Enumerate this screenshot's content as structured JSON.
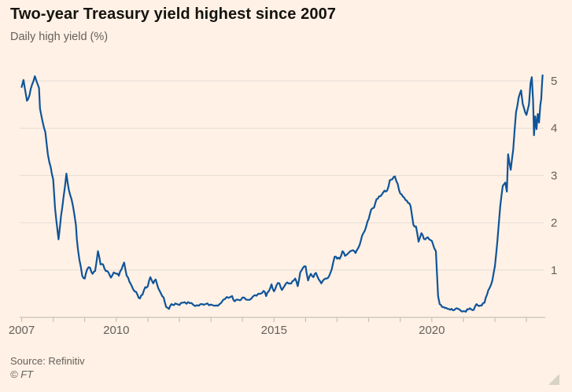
{
  "chart": {
    "title": "Two-year Treasury yield highest since 2007",
    "subtitle": "Daily high yield (%)",
    "source": "Source: Refinitiv",
    "copyright": "© FT"
  },
  "colors": {
    "background": "#fff1e5",
    "title_text": "#16130f",
    "muted_text": "#66605c",
    "gridline": "#e4ddd6",
    "axis_line": "#c9c1b8",
    "line": "#0f5499",
    "resize_handle": "#d8d2c7"
  },
  "chart_data": {
    "type": "line",
    "title": "Two-year Treasury yield highest since 2007",
    "subtitle": "Daily high yield (%)",
    "source": "Source: Refinitiv",
    "grid": "horizontal",
    "legend": "none",
    "y_axis_side": "right",
    "xlim": [
      2006.94,
      2023.6
    ],
    "ylim": [
      0,
      5.35
    ],
    "y_ticks": [
      1,
      2,
      3,
      4,
      5
    ],
    "x_ticks": [
      2007,
      2008,
      2009,
      2010,
      2011,
      2012,
      2013,
      2014,
      2015,
      2016,
      2017,
      2018,
      2019,
      2020,
      2021,
      2022,
      2023
    ],
    "x_labeled_ticks": [
      2007,
      2010,
      2015,
      2020
    ],
    "series": [
      {
        "name": "US two-year Treasury daily high yield (%)",
        "color": "#0f5499",
        "points": [
          [
            2007.0,
            4.87
          ],
          [
            2007.06,
            5.02
          ],
          [
            2007.1,
            4.85
          ],
          [
            2007.17,
            4.58
          ],
          [
            2007.25,
            4.7
          ],
          [
            2007.33,
            4.92
          ],
          [
            2007.42,
            5.1
          ],
          [
            2007.48,
            4.98
          ],
          [
            2007.55,
            4.85
          ],
          [
            2007.58,
            4.42
          ],
          [
            2007.67,
            4.12
          ],
          [
            2007.75,
            3.92
          ],
          [
            2007.83,
            3.45
          ],
          [
            2007.92,
            3.18
          ],
          [
            2008.0,
            2.92
          ],
          [
            2008.06,
            2.3
          ],
          [
            2008.1,
            2.05
          ],
          [
            2008.17,
            1.65
          ],
          [
            2008.22,
            1.95
          ],
          [
            2008.25,
            2.15
          ],
          [
            2008.33,
            2.55
          ],
          [
            2008.42,
            3.04
          ],
          [
            2008.5,
            2.68
          ],
          [
            2008.58,
            2.5
          ],
          [
            2008.67,
            2.18
          ],
          [
            2008.72,
            1.95
          ],
          [
            2008.75,
            1.65
          ],
          [
            2008.83,
            1.22
          ],
          [
            2008.92,
            0.88
          ],
          [
            2009.0,
            0.82
          ],
          [
            2009.08,
            1.02
          ],
          [
            2009.17,
            1.05
          ],
          [
            2009.25,
            0.92
          ],
          [
            2009.33,
            0.98
          ],
          [
            2009.42,
            1.4
          ],
          [
            2009.5,
            1.12
          ],
          [
            2009.58,
            1.12
          ],
          [
            2009.67,
            0.98
          ],
          [
            2009.75,
            0.95
          ],
          [
            2009.83,
            0.84
          ],
          [
            2009.92,
            0.95
          ],
          [
            2010.0,
            0.92
          ],
          [
            2010.08,
            0.88
          ],
          [
            2010.17,
            1.02
          ],
          [
            2010.25,
            1.16
          ],
          [
            2010.33,
            0.88
          ],
          [
            2010.42,
            0.75
          ],
          [
            2010.5,
            0.65
          ],
          [
            2010.58,
            0.55
          ],
          [
            2010.67,
            0.48
          ],
          [
            2010.75,
            0.4
          ],
          [
            2010.83,
            0.48
          ],
          [
            2010.92,
            0.64
          ],
          [
            2011.0,
            0.66
          ],
          [
            2011.08,
            0.85
          ],
          [
            2011.17,
            0.72
          ],
          [
            2011.25,
            0.8
          ],
          [
            2011.33,
            0.62
          ],
          [
            2011.42,
            0.5
          ],
          [
            2011.5,
            0.42
          ],
          [
            2011.58,
            0.22
          ],
          [
            2011.67,
            0.18
          ],
          [
            2011.75,
            0.28
          ],
          [
            2011.83,
            0.26
          ],
          [
            2011.92,
            0.28
          ],
          [
            2012.0,
            0.26
          ],
          [
            2012.17,
            0.32
          ],
          [
            2012.33,
            0.3
          ],
          [
            2012.5,
            0.24
          ],
          [
            2012.67,
            0.28
          ],
          [
            2012.83,
            0.28
          ],
          [
            2013.0,
            0.27
          ],
          [
            2013.17,
            0.25
          ],
          [
            2013.33,
            0.31
          ],
          [
            2013.5,
            0.43
          ],
          [
            2013.67,
            0.45
          ],
          [
            2013.75,
            0.34
          ],
          [
            2013.92,
            0.36
          ],
          [
            2014.0,
            0.42
          ],
          [
            2014.17,
            0.37
          ],
          [
            2014.33,
            0.44
          ],
          [
            2014.5,
            0.5
          ],
          [
            2014.67,
            0.56
          ],
          [
            2014.75,
            0.45
          ],
          [
            2014.83,
            0.55
          ],
          [
            2014.92,
            0.7
          ],
          [
            2015.0,
            0.55
          ],
          [
            2015.08,
            0.68
          ],
          [
            2015.17,
            0.72
          ],
          [
            2015.25,
            0.58
          ],
          [
            2015.33,
            0.66
          ],
          [
            2015.42,
            0.74
          ],
          [
            2015.5,
            0.72
          ],
          [
            2015.58,
            0.76
          ],
          [
            2015.67,
            0.82
          ],
          [
            2015.75,
            0.66
          ],
          [
            2015.83,
            0.95
          ],
          [
            2015.92,
            1.05
          ],
          [
            2016.0,
            1.08
          ],
          [
            2016.08,
            0.78
          ],
          [
            2016.17,
            0.92
          ],
          [
            2016.25,
            0.85
          ],
          [
            2016.33,
            0.94
          ],
          [
            2016.42,
            0.8
          ],
          [
            2016.5,
            0.72
          ],
          [
            2016.58,
            0.8
          ],
          [
            2016.67,
            0.82
          ],
          [
            2016.75,
            0.88
          ],
          [
            2016.83,
            1.02
          ],
          [
            2016.92,
            1.28
          ],
          [
            2017.0,
            1.24
          ],
          [
            2017.08,
            1.24
          ],
          [
            2017.17,
            1.4
          ],
          [
            2017.25,
            1.3
          ],
          [
            2017.33,
            1.34
          ],
          [
            2017.42,
            1.4
          ],
          [
            2017.5,
            1.42
          ],
          [
            2017.58,
            1.36
          ],
          [
            2017.67,
            1.47
          ],
          [
            2017.75,
            1.62
          ],
          [
            2017.83,
            1.78
          ],
          [
            2017.92,
            1.92
          ],
          [
            2018.0,
            2.08
          ],
          [
            2018.08,
            2.28
          ],
          [
            2018.17,
            2.32
          ],
          [
            2018.25,
            2.5
          ],
          [
            2018.33,
            2.56
          ],
          [
            2018.42,
            2.6
          ],
          [
            2018.5,
            2.68
          ],
          [
            2018.58,
            2.68
          ],
          [
            2018.67,
            2.9
          ],
          [
            2018.75,
            2.92
          ],
          [
            2018.83,
            2.98
          ],
          [
            2018.92,
            2.82
          ],
          [
            2019.0,
            2.62
          ],
          [
            2019.08,
            2.56
          ],
          [
            2019.17,
            2.48
          ],
          [
            2019.25,
            2.42
          ],
          [
            2019.33,
            2.35
          ],
          [
            2019.42,
            1.95
          ],
          [
            2019.5,
            1.92
          ],
          [
            2019.58,
            1.6
          ],
          [
            2019.67,
            1.78
          ],
          [
            2019.75,
            1.66
          ],
          [
            2019.83,
            1.68
          ],
          [
            2019.92,
            1.65
          ],
          [
            2020.0,
            1.62
          ],
          [
            2020.08,
            1.46
          ],
          [
            2020.13,
            1.4
          ],
          [
            2020.2,
            0.45
          ],
          [
            2020.25,
            0.28
          ],
          [
            2020.33,
            0.22
          ],
          [
            2020.42,
            0.2
          ],
          [
            2020.5,
            0.18
          ],
          [
            2020.58,
            0.16
          ],
          [
            2020.67,
            0.15
          ],
          [
            2020.75,
            0.18
          ],
          [
            2020.83,
            0.18
          ],
          [
            2020.92,
            0.14
          ],
          [
            2021.0,
            0.13
          ],
          [
            2021.08,
            0.12
          ],
          [
            2021.17,
            0.17
          ],
          [
            2021.25,
            0.17
          ],
          [
            2021.33,
            0.16
          ],
          [
            2021.42,
            0.28
          ],
          [
            2021.5,
            0.24
          ],
          [
            2021.58,
            0.25
          ],
          [
            2021.67,
            0.31
          ],
          [
            2021.75,
            0.48
          ],
          [
            2021.83,
            0.62
          ],
          [
            2021.92,
            0.78
          ],
          [
            2022.0,
            1.08
          ],
          [
            2022.08,
            1.62
          ],
          [
            2022.17,
            2.35
          ],
          [
            2022.25,
            2.78
          ],
          [
            2022.33,
            2.85
          ],
          [
            2022.38,
            2.66
          ],
          [
            2022.42,
            3.45
          ],
          [
            2022.5,
            3.12
          ],
          [
            2022.58,
            3.55
          ],
          [
            2022.67,
            4.34
          ],
          [
            2022.75,
            4.64
          ],
          [
            2022.83,
            4.8
          ],
          [
            2022.88,
            4.52
          ],
          [
            2022.92,
            4.43
          ],
          [
            2023.0,
            4.28
          ],
          [
            2023.08,
            4.5
          ],
          [
            2023.13,
            4.95
          ],
          [
            2023.17,
            5.08
          ],
          [
            2023.21,
            4.6
          ],
          [
            2023.24,
            3.85
          ],
          [
            2023.28,
            4.25
          ],
          [
            2023.32,
            3.98
          ],
          [
            2023.36,
            4.3
          ],
          [
            2023.4,
            4.12
          ],
          [
            2023.44,
            4.48
          ],
          [
            2023.47,
            4.62
          ],
          [
            2023.49,
            4.88
          ],
          [
            2023.51,
            5.12
          ]
        ]
      }
    ]
  }
}
